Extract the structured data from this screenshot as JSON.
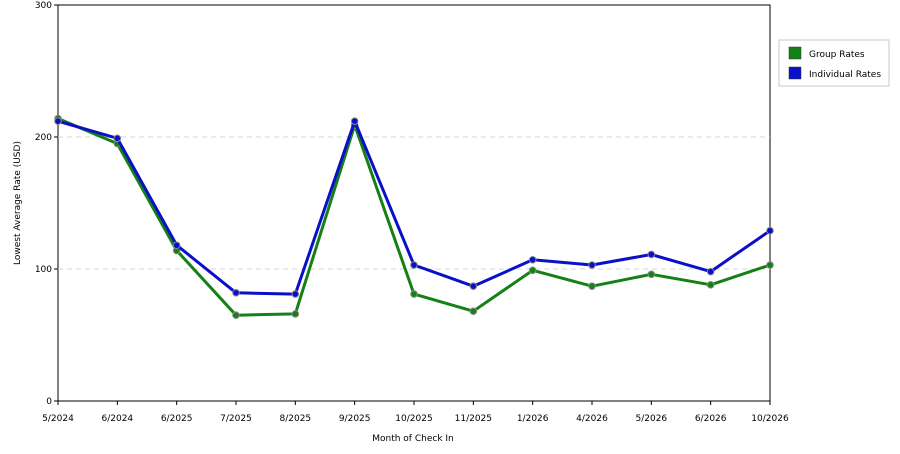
{
  "chart_data": {
    "type": "line",
    "title": "",
    "xlabel": "Month of Check In",
    "ylabel": "Lowest Average Rate (USD)",
    "categories": [
      "5/2024",
      "6/2024",
      "6/2025",
      "7/2025",
      "8/2025",
      "9/2025",
      "10/2025",
      "11/2025",
      "1/2026",
      "4/2026",
      "5/2026",
      "6/2026",
      "10/2026"
    ],
    "ylim": [
      0,
      300
    ],
    "yticks": [
      0,
      100,
      200,
      300
    ],
    "grid": "horizontal dashed",
    "legend_position": "right",
    "series": [
      {
        "name": "Group Rates",
        "color": "#158015",
        "values": [
          214,
          195,
          114,
          65,
          66,
          209,
          81,
          68,
          99,
          87,
          96,
          88,
          103
        ]
      },
      {
        "name": "Individual Rates",
        "color": "#0a10c8",
        "values": [
          212,
          199,
          118,
          82,
          81,
          212,
          103,
          87,
          107,
          103,
          111,
          98,
          129
        ]
      }
    ]
  }
}
